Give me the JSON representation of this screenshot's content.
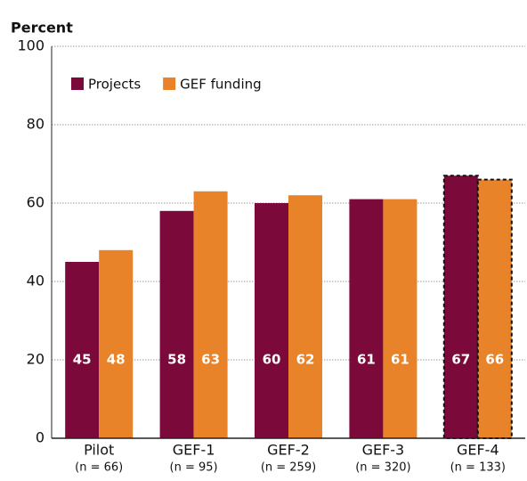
{
  "chart_data": {
    "type": "bar",
    "y_label": "Percent",
    "categories": [
      "Pilot",
      "GEF-1",
      "GEF-2",
      "GEF-3",
      "GEF-4"
    ],
    "category_notes": [
      "(n = 66)",
      "(n = 95)",
      "(n = 259)",
      "(n = 320)",
      "(n = 133)"
    ],
    "series": [
      {
        "name": "Projects",
        "color": "#7b0a3a",
        "values": [
          45,
          58,
          60,
          61,
          67
        ]
      },
      {
        "name": "GEF funding",
        "color": "#e8832a",
        "values": [
          48,
          63,
          62,
          61,
          66
        ]
      }
    ],
    "highlight_category": "GEF-4",
    "ylim": [
      0,
      100
    ],
    "yticks": [
      0,
      20,
      40,
      60,
      80,
      100
    ],
    "grid": true,
    "legend": "top-left"
  }
}
